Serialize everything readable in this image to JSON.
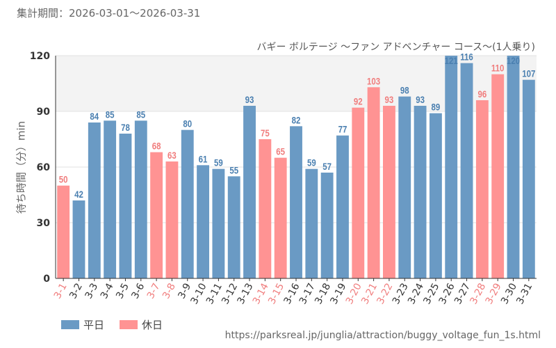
{
  "header": {
    "period": "集計期間：2026-03-01～2026-03-31"
  },
  "chart_data": {
    "type": "bar",
    "title": "バギー ボルテージ ～ファン アドベンチャー コース～(1人乗り)",
    "ylabel": "待ち時間（分）min",
    "xlabel": "",
    "ylim": [
      0,
      120
    ],
    "yticks": [
      0,
      30,
      60,
      90,
      120
    ],
    "categories": [
      "3-1",
      "3-2",
      "3-3",
      "3-4",
      "3-5",
      "3-6",
      "3-7",
      "3-8",
      "3-9",
      "3-10",
      "3-11",
      "3-12",
      "3-13",
      "3-14",
      "3-15",
      "3-16",
      "3-17",
      "3-18",
      "3-19",
      "3-20",
      "3-21",
      "3-22",
      "3-23",
      "3-24",
      "3-25",
      "3-26",
      "3-27",
      "3-28",
      "3-29",
      "3-30",
      "3-31"
    ],
    "values": [
      50,
      42,
      84,
      85,
      78,
      85,
      68,
      63,
      80,
      61,
      59,
      55,
      93,
      75,
      65,
      82,
      59,
      57,
      77,
      92,
      103,
      93,
      98,
      93,
      89,
      121,
      116,
      96,
      110,
      120,
      107
    ],
    "day_type": [
      "holiday",
      "weekday",
      "weekday",
      "weekday",
      "weekday",
      "weekday",
      "holiday",
      "holiday",
      "weekday",
      "weekday",
      "weekday",
      "weekday",
      "weekday",
      "holiday",
      "holiday",
      "weekday",
      "weekday",
      "weekday",
      "weekday",
      "holiday",
      "holiday",
      "holiday",
      "weekday",
      "weekday",
      "weekday",
      "weekday",
      "weekday",
      "holiday",
      "holiday",
      "weekday",
      "weekday"
    ],
    "series": [
      {
        "key": "weekday",
        "name": "平日",
        "color": "#6a9ac4"
      },
      {
        "key": "holiday",
        "name": "休日",
        "color": "#ff9393"
      }
    ],
    "grid": true,
    "legend": "bottom-left"
  },
  "footer": {
    "source": "https://parksreal.jp/junglia/attraction/buggy_voltage_fun_1s.html"
  }
}
